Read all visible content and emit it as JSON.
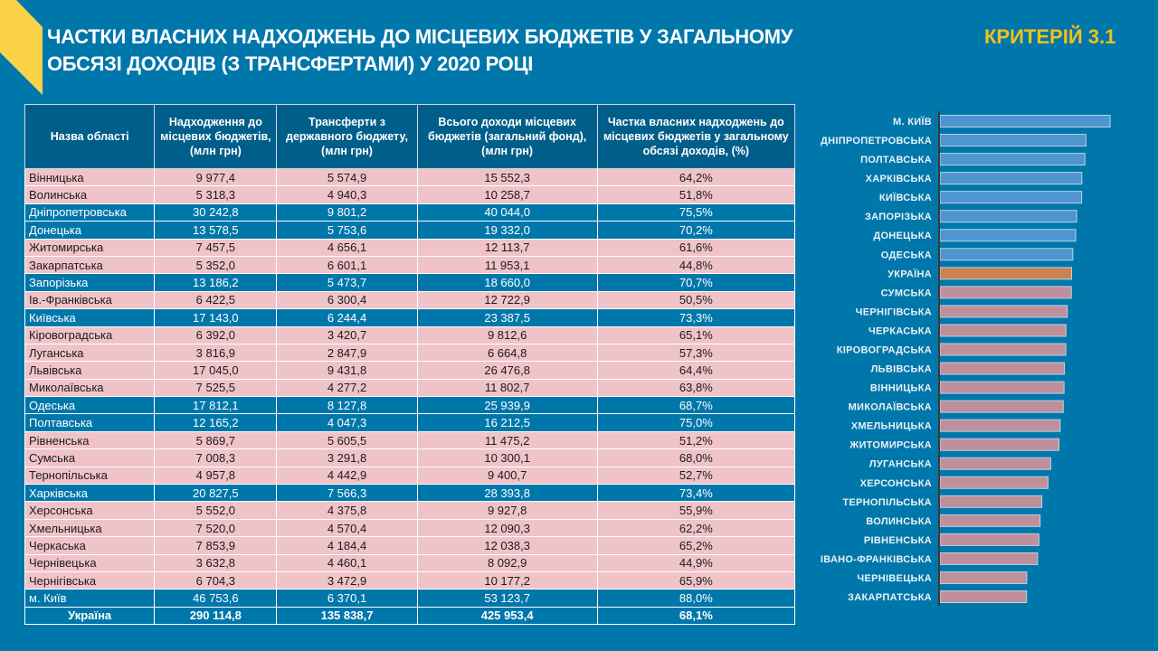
{
  "header": {
    "title_line1": "ЧАСТКИ ВЛАСНИХ НАДХОДЖЕНЬ ДО МІСЦЕВИХ БЮДЖЕТІВ У ЗАГАЛЬНОМУ",
    "title_line2": "ОБСЯЗІ ДОХОДІВ (З ТРАНСФЕРТАМИ) У 2020 РОЦІ",
    "criterion": "КРИТЕРІЙ 3.1"
  },
  "table": {
    "columns": [
      "Назва області",
      "Надходження до місцевих бюджетів, (млн грн)",
      "Трансферти з державного бюджету, (млн грн)",
      "Всього доходи місцевих бюджетів (загальний фонд), (млн грн)",
      "Частка власних надходжень до місцевих бюджетів у загальному обсязі доходів, (%)"
    ],
    "rows": [
      {
        "cells": [
          "Вінницька",
          "9 977,4",
          "5 574,9",
          "15 552,3",
          "64,2%"
        ],
        "highlight": false
      },
      {
        "cells": [
          "Волинська",
          "5 318,3",
          "4 940,3",
          "10 258,7",
          "51,8%"
        ],
        "highlight": false
      },
      {
        "cells": [
          "Дніпропетровська",
          "30 242,8",
          "9 801,2",
          "40 044,0",
          "75,5%"
        ],
        "highlight": true
      },
      {
        "cells": [
          "Донецька",
          "13 578,5",
          "5 753,6",
          "19 332,0",
          "70,2%"
        ],
        "highlight": true
      },
      {
        "cells": [
          "Житомирська",
          "7 457,5",
          "4 656,1",
          "12 113,7",
          "61,6%"
        ],
        "highlight": false
      },
      {
        "cells": [
          "Закарпатська",
          "5 352,0",
          "6 601,1",
          "11 953,1",
          "44,8%"
        ],
        "highlight": false
      },
      {
        "cells": [
          "Запорізька",
          "13 186,2",
          "5 473,7",
          "18 660,0",
          "70,7%"
        ],
        "highlight": true
      },
      {
        "cells": [
          "Ів.-Франківська",
          "6 422,5",
          "6 300,4",
          "12 722,9",
          "50,5%"
        ],
        "highlight": false
      },
      {
        "cells": [
          "Київська",
          "17 143,0",
          "6 244,4",
          "23 387,5",
          "73,3%"
        ],
        "highlight": true
      },
      {
        "cells": [
          "Кіровоградська",
          "6 392,0",
          "3 420,7",
          "9 812,6",
          "65,1%"
        ],
        "highlight": false
      },
      {
        "cells": [
          "Луганська",
          "3 816,9",
          "2 847,9",
          "6 664,8",
          "57,3%"
        ],
        "highlight": false
      },
      {
        "cells": [
          "Львівська",
          "17 045,0",
          "9 431,8",
          "26 476,8",
          "64,4%"
        ],
        "highlight": false
      },
      {
        "cells": [
          "Миколаївська",
          "7 525,5",
          "4 277,2",
          "11 802,7",
          "63,8%"
        ],
        "highlight": false
      },
      {
        "cells": [
          "Одеська",
          "17 812,1",
          "8 127,8",
          "25 939,9",
          "68,7%"
        ],
        "highlight": true
      },
      {
        "cells": [
          "Полтавська",
          "12 165,2",
          "4 047,3",
          "16 212,5",
          "75,0%"
        ],
        "highlight": true
      },
      {
        "cells": [
          "Рівненська",
          "5 869,7",
          "5 605,5",
          "11 475,2",
          "51,2%"
        ],
        "highlight": false
      },
      {
        "cells": [
          "Сумська",
          "7 008,3",
          "3 291,8",
          "10 300,1",
          "68,0%"
        ],
        "highlight": false
      },
      {
        "cells": [
          "Тернопільська",
          "4 957,8",
          "4 442,9",
          "9 400,7",
          "52,7%"
        ],
        "highlight": false
      },
      {
        "cells": [
          "Харківська",
          "20 827,5",
          "7 566,3",
          "28 393,8",
          "73,4%"
        ],
        "highlight": true
      },
      {
        "cells": [
          "Херсонська",
          "5 552,0",
          "4 375,8",
          "9 927,8",
          "55,9%"
        ],
        "highlight": false
      },
      {
        "cells": [
          "Хмельницька",
          "7 520,0",
          "4 570,4",
          "12 090,3",
          "62,2%"
        ],
        "highlight": false
      },
      {
        "cells": [
          "Черкаська",
          "7 853,9",
          "4 184,4",
          "12 038,3",
          "65,2%"
        ],
        "highlight": false
      },
      {
        "cells": [
          "Чернівецька",
          "3 632,8",
          "4 460,1",
          "8 092,9",
          "44,9%"
        ],
        "highlight": false
      },
      {
        "cells": [
          "Чернігівська",
          "6 704,3",
          "3 472,9",
          "10 177,2",
          "65,9%"
        ],
        "highlight": false
      },
      {
        "cells": [
          "м. Київ",
          "46 753,6",
          "6 370,1",
          "53 123,7",
          "88,0%"
        ],
        "highlight": true
      }
    ],
    "total": [
      "Україна",
      "290 114,8",
      "135 838,7",
      "425 953,4",
      "68,1%"
    ]
  },
  "chart_data": {
    "type": "bar",
    "orientation": "horizontal",
    "title": "",
    "xlabel": "",
    "ylabel": "",
    "xlim": [
      0,
      88
    ],
    "grid": false,
    "categories": [
      "М. КИЇВ",
      "ДНІПРОПЕТРОВСЬКА",
      "ПОЛТАВСЬКА",
      "ХАРКІВСЬКА",
      "КИЇВСЬКА",
      "ЗАПОРІЗЬКА",
      "ДОНЕЦЬКА",
      "ОДЕСЬКА",
      "УКРАЇНА",
      "СУМСЬКА",
      "ЧЕРНІГІВСЬКА",
      "ЧЕРКАСЬКА",
      "КІРОВОГРАДСЬКА",
      "ЛЬВІВСЬКА",
      "ВІННИЦЬКА",
      "МИКОЛАЇВСЬКА",
      "ХМЕЛЬНИЦЬКА",
      "ЖИТОМИРСЬКА",
      "ЛУГАНСЬКА",
      "ХЕРСОНСЬКА",
      "ТЕРНОПІЛЬСЬКА",
      "ВОЛИНСЬКА",
      "РІВНЕНСЬКА",
      "ІВАНО-ФРАНКІВСЬКА",
      "ЧЕРНІВЕЦЬКА",
      "ЗАКАРПАТСЬКА"
    ],
    "values": [
      88.0,
      75.5,
      75.0,
      73.4,
      73.3,
      70.7,
      70.2,
      68.7,
      68.1,
      68.0,
      65.9,
      65.2,
      65.1,
      64.4,
      64.2,
      63.8,
      62.2,
      61.6,
      57.3,
      55.9,
      52.7,
      51.8,
      51.2,
      50.5,
      44.9,
      44.8
    ],
    "groups": [
      "above",
      "above",
      "above",
      "above",
      "above",
      "above",
      "above",
      "above",
      "ukraine",
      "below",
      "below",
      "below",
      "below",
      "below",
      "below",
      "below",
      "below",
      "below",
      "below",
      "below",
      "below",
      "below",
      "below",
      "below",
      "below",
      "below"
    ],
    "colors": {
      "above": "#4f95cf",
      "ukraine": "#c8834f",
      "below": "#bf8f9c"
    }
  }
}
